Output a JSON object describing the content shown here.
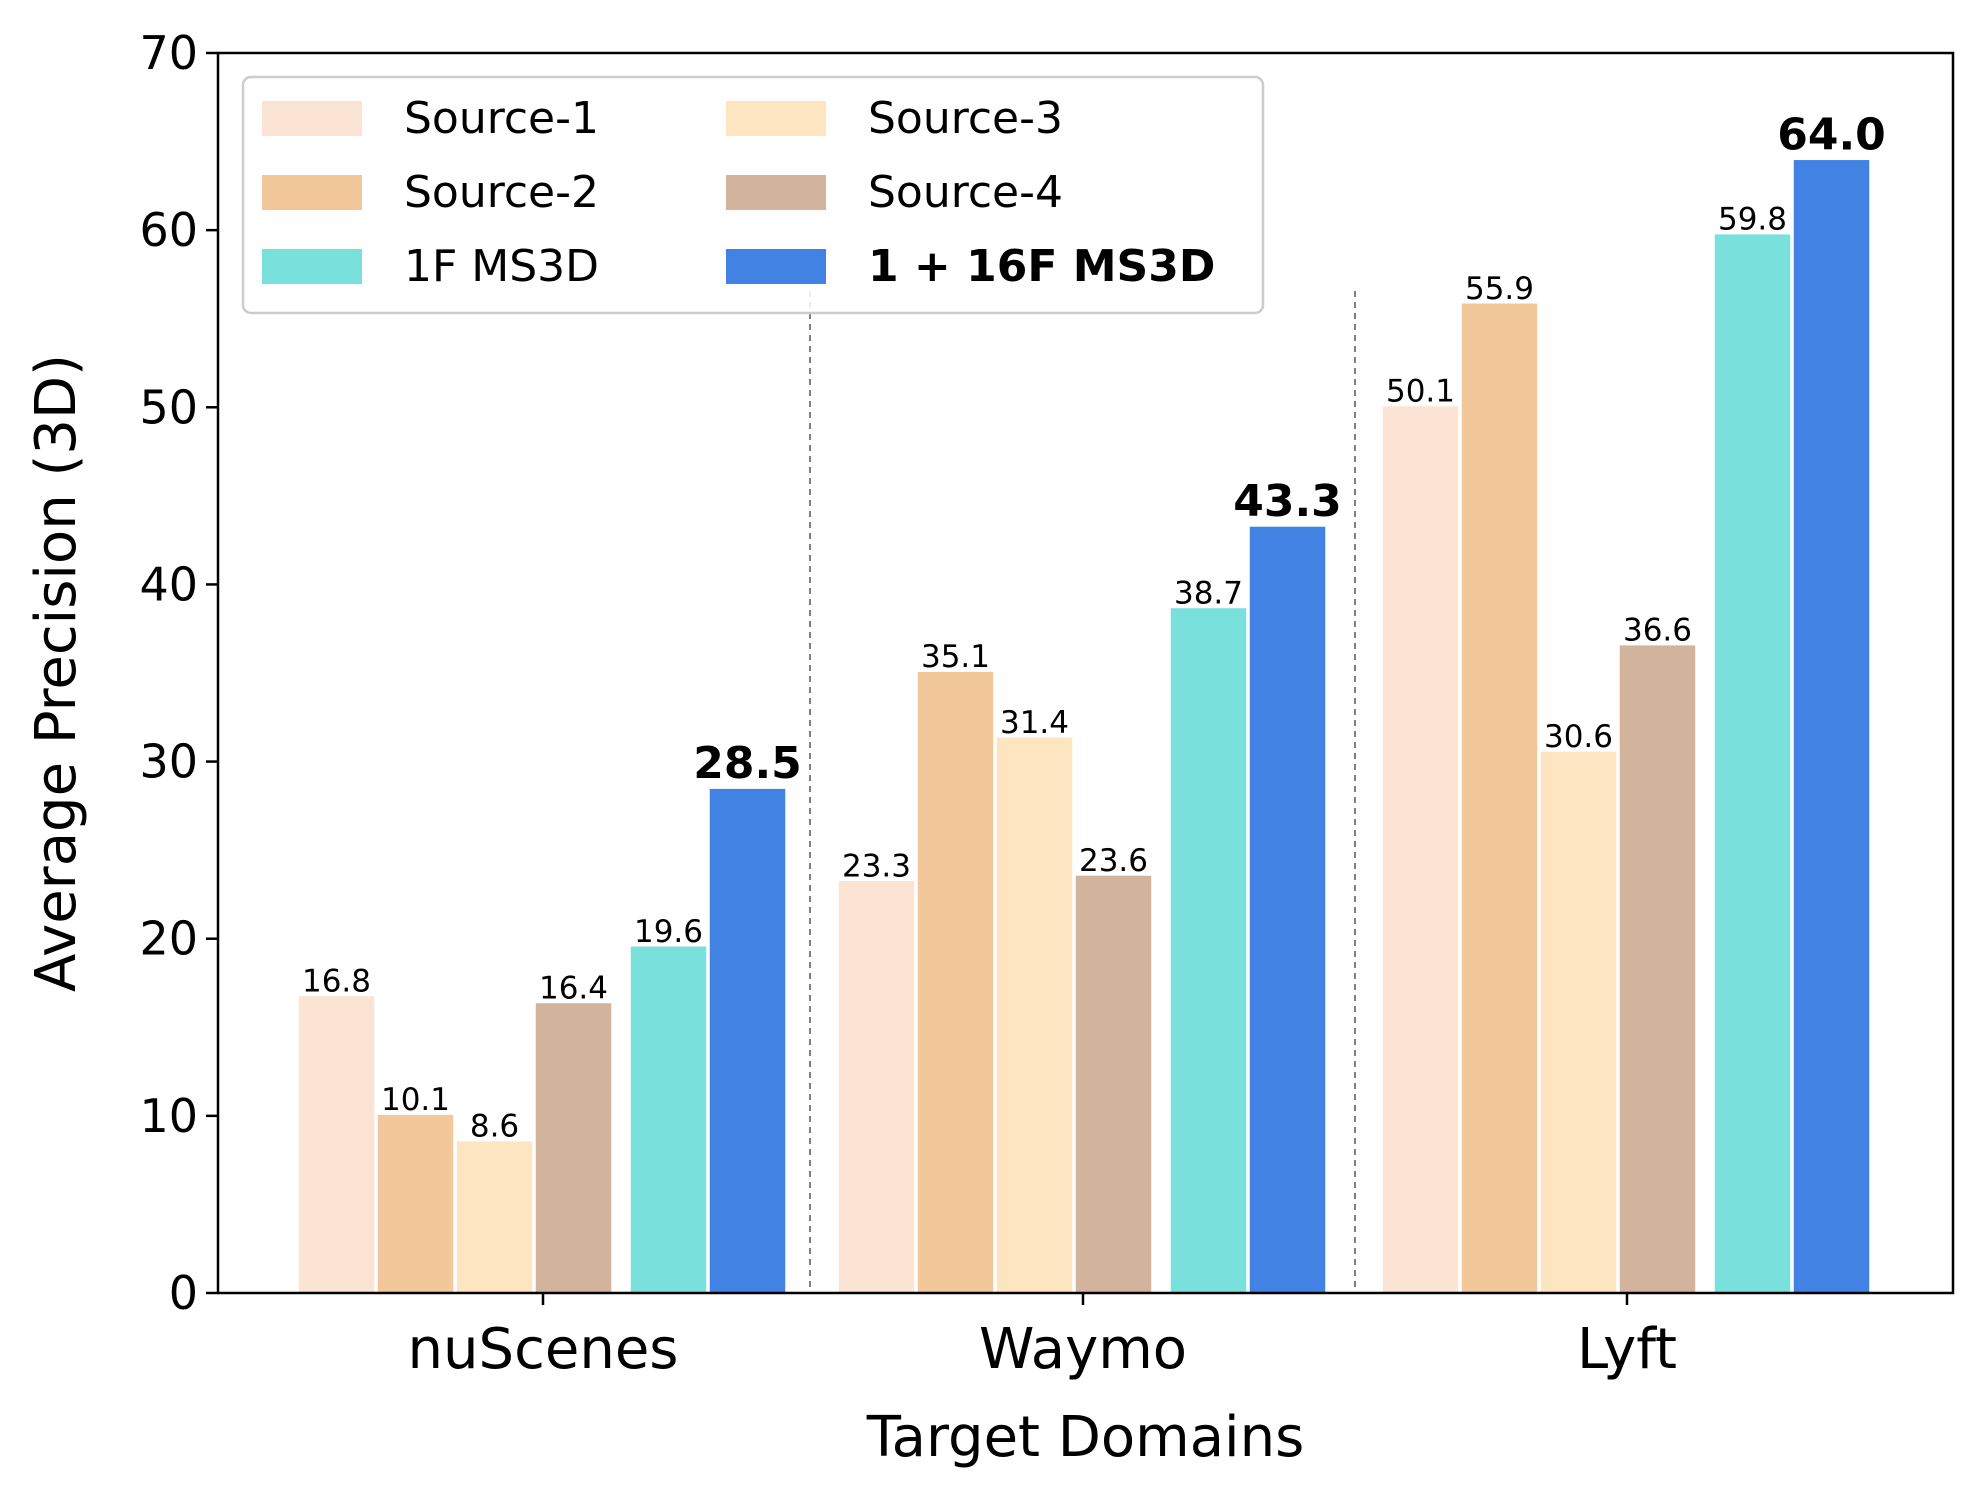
{
  "chart_data": {
    "type": "bar",
    "xlabel": "Target Domains",
    "ylabel": "Average Precision (3D)",
    "ylim": [
      0,
      70
    ],
    "yticks": [
      0,
      10,
      20,
      30,
      40,
      50,
      60,
      70
    ],
    "categories": [
      "nuScenes",
      "Waymo",
      "Lyft"
    ],
    "series": [
      {
        "name": "Source-1",
        "color": "#fce4d4",
        "values": [
          16.8,
          23.3,
          50.1
        ],
        "labels": [
          "16.8",
          "23.3",
          "50.1"
        ],
        "bold": false
      },
      {
        "name": "Source-2",
        "color": "#f2c79a",
        "values": [
          10.1,
          35.1,
          55.9
        ],
        "labels": [
          "10.1",
          "35.1",
          "55.9"
        ],
        "bold": false
      },
      {
        "name": "Source-3",
        "color": "#fde5c2",
        "values": [
          8.6,
          31.4,
          30.6
        ],
        "labels": [
          "8.6",
          "31.4",
          "30.6"
        ],
        "bold": false
      },
      {
        "name": "Source-4",
        "color": "#d2b39c",
        "values": [
          16.4,
          23.6,
          36.6
        ],
        "labels": [
          "16.4",
          "23.6",
          "36.6"
        ],
        "bold": false
      },
      {
        "name": "1F MS3D",
        "color": "#7ae0dc",
        "values": [
          19.6,
          38.7,
          59.8
        ],
        "labels": [
          "19.6",
          "38.7",
          "59.8"
        ],
        "bold": false
      },
      {
        "name": "1 + 16F MS3D",
        "color": "#4282e3",
        "values": [
          28.5,
          43.3,
          64.0
        ],
        "labels": [
          "28.5",
          "43.3",
          "64.0"
        ],
        "bold": true
      }
    ],
    "legend": {
      "position": "top-left",
      "columns": 2
    },
    "grid": false,
    "group_separators": "dashed"
  }
}
